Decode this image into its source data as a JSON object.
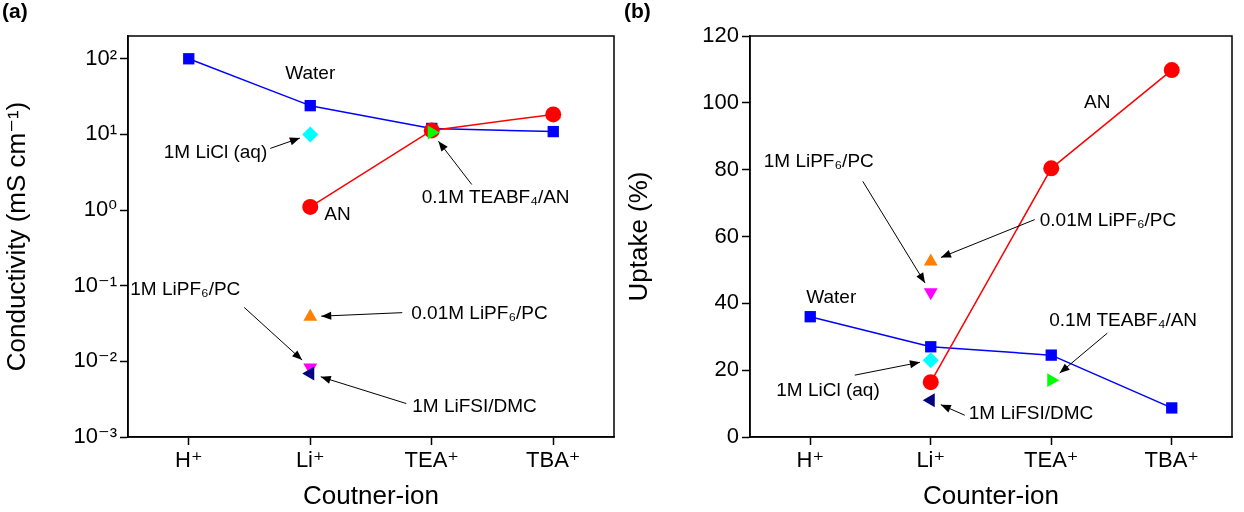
{
  "chart_data": [
    {
      "type": "line",
      "title": "(a)",
      "xlabel": "Coutner-ion",
      "ylabel": "Conductivity (mS cm⁻¹)",
      "categories": [
        "H⁺",
        "Li⁺",
        "TEA⁺",
        "TBA⁺"
      ],
      "log": "y",
      "ylim": [
        0.001,
        200
      ],
      "yticks": [
        {
          "value": 0.001,
          "label": "10⁻³"
        },
        {
          "value": 0.01,
          "label": "10⁻²"
        },
        {
          "value": 0.1,
          "label": "10⁻¹"
        },
        {
          "value": 1,
          "label": "10⁰"
        },
        {
          "value": 10,
          "label": "10¹"
        },
        {
          "value": 100,
          "label": "10²"
        }
      ],
      "series": [
        {
          "name": "Water",
          "type": "line",
          "marker": "square",
          "color": "#0000ff",
          "values": [
            100,
            24,
            12,
            10.9
          ]
        },
        {
          "name": "AN",
          "type": "line",
          "marker": "circle",
          "color": "#ff0000",
          "values": [
            null,
            1.1,
            11.3,
            18.4
          ]
        },
        {
          "name": "1M LiCl (aq)",
          "type": "scatter",
          "marker": "diamond",
          "color": "#00ffff",
          "values": [
            null,
            10,
            null,
            null
          ]
        },
        {
          "name": "0.1M TEABF₄/AN",
          "type": "scatter",
          "marker": "triangle",
          "color": "#00ff00",
          "values": [
            null,
            null,
            10.6,
            null
          ]
        },
        {
          "name": "0.01M LiPF₆/PC",
          "type": "scatter",
          "marker": "triangle",
          "color": "#ff8000",
          "values": [
            null,
            0.039,
            null,
            null
          ]
        },
        {
          "name": "1M LiPF₆/PC",
          "type": "scatter",
          "marker": "triangle",
          "color": "#ff00ff",
          "values": [
            null,
            0.0083,
            null,
            null
          ]
        },
        {
          "name": "1M LiFSI/DMC",
          "type": "scatter",
          "marker": "triangle",
          "color": "#000080",
          "values": [
            null,
            0.0069,
            null,
            null
          ]
        }
      ]
    },
    {
      "type": "line",
      "title": "(b)",
      "xlabel": "Counter-ion",
      "ylabel": "Uptake (%)",
      "categories": [
        "H⁺",
        "Li⁺",
        "TEA⁺",
        "TBA⁺"
      ],
      "ylim": [
        0,
        120
      ],
      "yticks": [
        0,
        20,
        40,
        60,
        80,
        100,
        120
      ],
      "series": [
        {
          "name": "Water",
          "type": "line",
          "marker": "square",
          "color": "#0000ff",
          "values": [
            36,
            27,
            24.5,
            8.7
          ]
        },
        {
          "name": "AN",
          "type": "line",
          "marker": "circle",
          "color": "#ff0000",
          "values": [
            null,
            16.4,
            80.4,
            109.8
          ]
        },
        {
          "name": "1M LiCl (aq)",
          "type": "scatter",
          "marker": "diamond",
          "color": "#00ffff",
          "values": [
            null,
            23,
            null,
            null
          ]
        },
        {
          "name": "0.1M TEABF₄/AN",
          "type": "scatter",
          "marker": "triangle",
          "color": "#00ff00",
          "values": [
            null,
            null,
            17,
            null
          ]
        },
        {
          "name": "0.01M LiPF₆/PC",
          "type": "scatter",
          "marker": "triangle",
          "color": "#ff8000",
          "values": [
            null,
            52.5,
            null,
            null
          ]
        },
        {
          "name": "1M LiPF₆/PC",
          "type": "scatter",
          "marker": "triangle",
          "color": "#ff00ff",
          "values": [
            null,
            43.3,
            null,
            null
          ]
        },
        {
          "name": "1M LiFSI/DMC",
          "type": "scatter",
          "marker": "triangle",
          "color": "#000080",
          "values": [
            null,
            11,
            null,
            null
          ]
        }
      ]
    }
  ]
}
